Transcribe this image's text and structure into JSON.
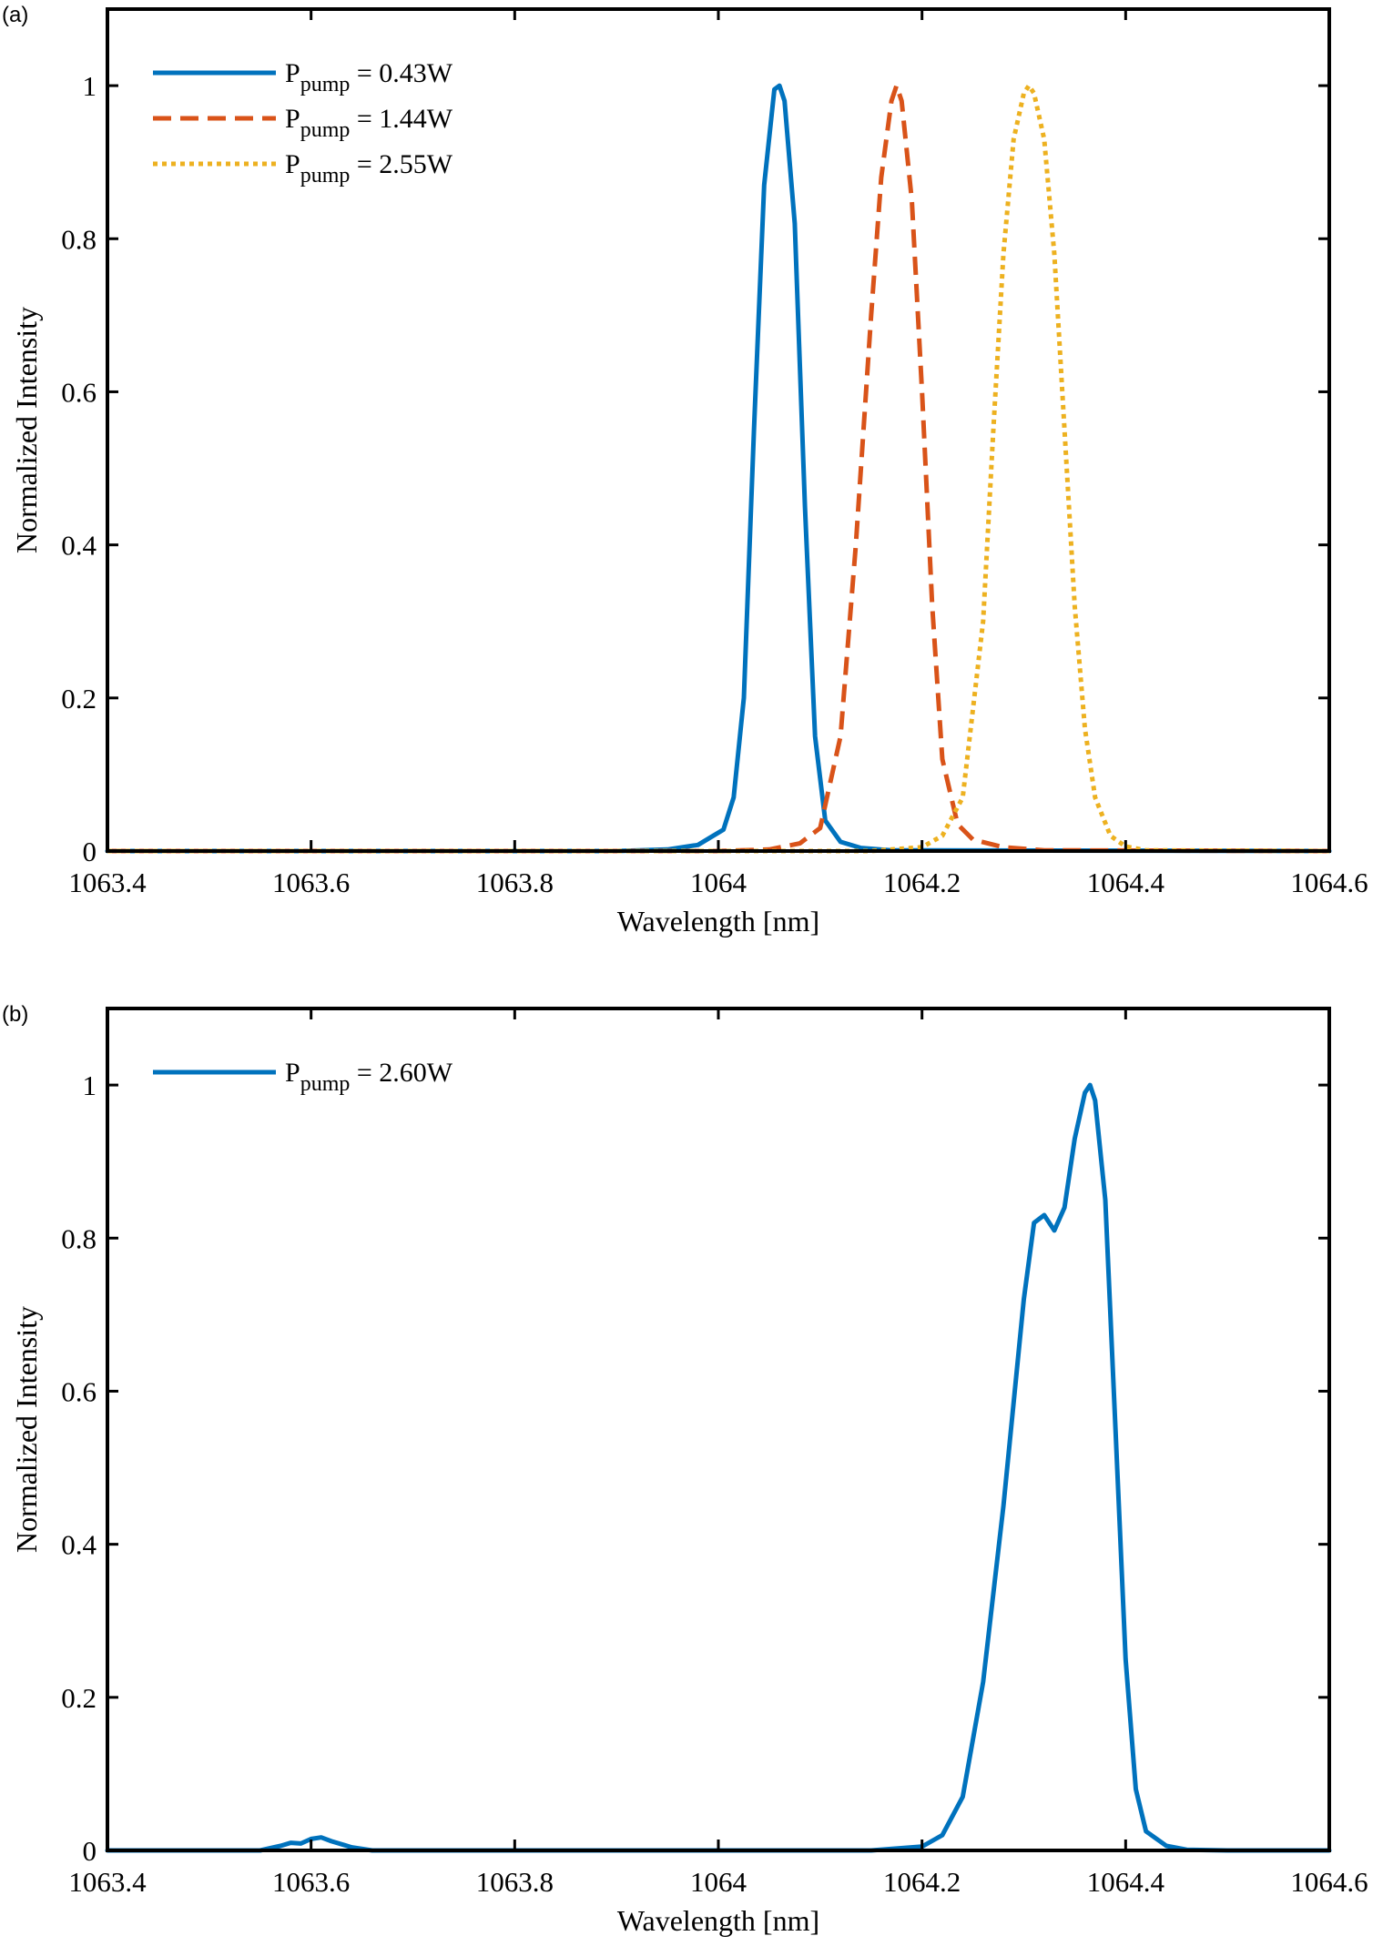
{
  "colors": {
    "blue": "#0072BD",
    "orange": "#D95319",
    "yellow": "#EDB120",
    "axis": "#000000"
  },
  "chart_data": [
    {
      "panel_label": "(a)",
      "type": "line",
      "xlabel": "Wavelength [nm]",
      "ylabel": "Normalized Intensity",
      "xlim": [
        1063.4,
        1064.6
      ],
      "ylim": [
        0,
        1.1
      ],
      "xticks": [
        1063.4,
        1063.6,
        1063.8,
        1064,
        1064.2,
        1064.4,
        1064.6
      ],
      "xtick_labels": [
        "1063.4",
        "1063.6",
        "1063.8",
        "1064",
        "1064.2",
        "1064.4",
        "1064.6"
      ],
      "yticks": [
        0,
        0.2,
        0.4,
        0.6,
        0.8,
        1
      ],
      "ytick_labels": [
        "0",
        "0.2",
        "0.4",
        "0.6",
        "0.8",
        "1"
      ],
      "grid": false,
      "legend_position": "top-left",
      "series": [
        {
          "legend_main": "P",
          "legend_sub": "pump",
          "legend_value": " = 0.43W",
          "color": "#0072BD",
          "style": "solid",
          "x": [
            1063.4,
            1063.9,
            1063.95,
            1063.98,
            1063.995,
            1064.005,
            1064.015,
            1064.025,
            1064.035,
            1064.045,
            1064.055,
            1064.06,
            1064.065,
            1064.075,
            1064.085,
            1064.095,
            1064.105,
            1064.12,
            1064.14,
            1064.17,
            1064.6
          ],
          "y": [
            0,
            0,
            0.002,
            0.008,
            0.02,
            0.028,
            0.07,
            0.2,
            0.55,
            0.87,
            0.995,
            1.0,
            0.98,
            0.82,
            0.45,
            0.15,
            0.04,
            0.012,
            0.004,
            0.001,
            0
          ]
        },
        {
          "legend_main": "P",
          "legend_sub": "pump",
          "legend_value": " = 1.44W",
          "color": "#D95319",
          "style": "dashed",
          "x": [
            1063.4,
            1064.0,
            1064.05,
            1064.08,
            1064.1,
            1064.12,
            1064.135,
            1064.15,
            1064.16,
            1064.17,
            1064.175,
            1064.18,
            1064.19,
            1064.2,
            1064.21,
            1064.22,
            1064.235,
            1064.25,
            1064.28,
            1064.32,
            1064.6
          ],
          "y": [
            0,
            0,
            0.002,
            0.01,
            0.03,
            0.15,
            0.4,
            0.7,
            0.88,
            0.98,
            1.0,
            0.98,
            0.85,
            0.6,
            0.32,
            0.12,
            0.035,
            0.015,
            0.005,
            0.001,
            0
          ]
        },
        {
          "legend_main": "P",
          "legend_sub": "pump",
          "legend_value": " = 2.55W",
          "color": "#EDB120",
          "style": "dotted",
          "x": [
            1063.4,
            1064.15,
            1064.2,
            1064.22,
            1064.24,
            1064.26,
            1064.27,
            1064.28,
            1064.29,
            1064.3,
            1064.305,
            1064.31,
            1064.32,
            1064.33,
            1064.34,
            1064.35,
            1064.36,
            1064.37,
            1064.385,
            1064.4,
            1064.42,
            1064.6
          ],
          "y": [
            0,
            0,
            0.005,
            0.02,
            0.07,
            0.3,
            0.55,
            0.78,
            0.93,
            0.99,
            1.0,
            0.99,
            0.93,
            0.78,
            0.55,
            0.32,
            0.16,
            0.07,
            0.02,
            0.006,
            0.001,
            0
          ]
        }
      ]
    },
    {
      "panel_label": "(b)",
      "type": "line",
      "xlabel": "Wavelength [nm]",
      "ylabel": "Normalized Intensity",
      "xlim": [
        1063.4,
        1064.6
      ],
      "ylim": [
        0,
        1.1
      ],
      "xticks": [
        1063.4,
        1063.6,
        1063.8,
        1064,
        1064.2,
        1064.4,
        1064.6
      ],
      "xtick_labels": [
        "1063.4",
        "1063.6",
        "1063.8",
        "1064",
        "1064.2",
        "1064.4",
        "1064.6"
      ],
      "yticks": [
        0,
        0.2,
        0.4,
        0.6,
        0.8,
        1
      ],
      "ytick_labels": [
        "0",
        "0.2",
        "0.4",
        "0.6",
        "0.8",
        "1"
      ],
      "grid": false,
      "legend_position": "top-left",
      "series": [
        {
          "legend_main": "P",
          "legend_sub": "pump",
          "legend_value": " = 2.60W",
          "color": "#0072BD",
          "style": "solid",
          "x": [
            1063.4,
            1063.55,
            1063.57,
            1063.58,
            1063.59,
            1063.6,
            1063.61,
            1063.62,
            1063.64,
            1063.66,
            1064.15,
            1064.2,
            1064.22,
            1064.24,
            1064.26,
            1064.28,
            1064.3,
            1064.31,
            1064.32,
            1064.33,
            1064.34,
            1064.35,
            1064.36,
            1064.365,
            1064.37,
            1064.38,
            1064.39,
            1064.4,
            1064.41,
            1064.42,
            1064.44,
            1064.46,
            1064.5,
            1064.6
          ],
          "y": [
            0,
            0,
            0.006,
            0.01,
            0.009,
            0.015,
            0.017,
            0.012,
            0.004,
            0,
            0,
            0.005,
            0.02,
            0.07,
            0.22,
            0.45,
            0.72,
            0.82,
            0.83,
            0.81,
            0.84,
            0.93,
            0.99,
            1.0,
            0.98,
            0.85,
            0.55,
            0.25,
            0.08,
            0.025,
            0.006,
            0.001,
            0,
            0
          ]
        }
      ]
    }
  ]
}
